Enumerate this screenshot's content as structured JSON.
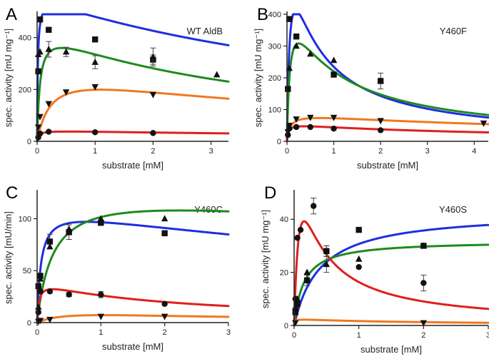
{
  "figure": {
    "x_label": "substrate [mM]",
    "marker_color": "#111111"
  },
  "chart_data": [
    {
      "type": "scatter",
      "panel_letter": "A",
      "title": "WT AldB",
      "xlabel": "substrate [mM]",
      "ylabel": "spec. activity [mU mg⁻¹]",
      "xlim": [
        0,
        3.3
      ],
      "ylim": [
        0,
        490
      ],
      "x_ticks": [
        0,
        1,
        2,
        3
      ],
      "y_ticks": [
        0,
        200,
        400
      ],
      "series": [
        {
          "name": "blue",
          "color": "#1f2de0",
          "marker": "square",
          "points": [
            [
              0.02,
              270
            ],
            [
              0.05,
              470
            ],
            [
              0.2,
              430
            ],
            [
              1.0,
              393
            ],
            [
              2.0,
              315
            ]
          ],
          "errors": [
            0,
            0,
            0,
            0,
            18
          ],
          "curve": {
            "Vmax": 560,
            "Km": 0.012,
            "Ki": 6.5
          }
        },
        {
          "name": "green",
          "color": "#1e8a1e",
          "marker": "triangle",
          "points": [
            [
              0.02,
              335
            ],
            [
              0.05,
              345
            ],
            [
              0.2,
              355
            ],
            [
              0.5,
              345
            ],
            [
              1.0,
              305
            ],
            [
              2.0,
              325
            ],
            [
              3.1,
              257
            ]
          ],
          "errors": [
            0,
            0,
            30,
            18,
            25,
            35,
            0
          ],
          "curve": {
            "Vmax": 445,
            "Km": 0.05,
            "Ki": 3.6
          }
        },
        {
          "name": "orange",
          "color": "#f07820",
          "marker": "triangle-down",
          "points": [
            [
              0.02,
              55
            ],
            [
              0.05,
              95
            ],
            [
              0.2,
              145
            ],
            [
              0.5,
              190
            ],
            [
              1.0,
              210
            ],
            [
              2.0,
              180
            ]
          ],
          "errors": [
            0,
            0,
            0,
            0,
            0,
            0
          ],
          "curve": {
            "Vmax": 290,
            "Km": 0.25,
            "Ki": 4.8
          }
        },
        {
          "name": "red",
          "color": "#e01e1e",
          "marker": "circle",
          "points": [
            [
              0.02,
              15
            ],
            [
              0.05,
              30
            ],
            [
              0.2,
              37
            ],
            [
              1.0,
              35
            ],
            [
              2.0,
              32
            ]
          ],
          "errors": [
            0,
            0,
            0,
            0,
            0
          ],
          "curve": {
            "Vmax": 42,
            "Km": 0.03,
            "Ki": 9
          }
        }
      ]
    },
    {
      "type": "scatter",
      "panel_letter": "B",
      "title": "Y460F",
      "xlabel": "substrate [mM]",
      "ylabel": "spec. activity [mU mg⁻¹]",
      "xlim": [
        0,
        4.3
      ],
      "ylim": [
        0,
        400
      ],
      "x_ticks": [
        0,
        1,
        2,
        3,
        4
      ],
      "y_ticks": [
        0,
        100,
        200,
        300,
        400
      ],
      "series": [
        {
          "name": "blue",
          "color": "#1f2de0",
          "marker": "square",
          "points": [
            [
              0.02,
              165
            ],
            [
              0.05,
              385
            ],
            [
              0.2,
              330
            ],
            [
              1.0,
              210
            ],
            [
              2.0,
              190
            ]
          ],
          "errors": [
            0,
            0,
            0,
            0,
            25
          ],
          "curve": {
            "Vmax": 720,
            "Km": 0.07,
            "Ki": 0.5
          }
        },
        {
          "name": "green",
          "color": "#1e8a1e",
          "marker": "triangle",
          "points": [
            [
              0.05,
              230
            ],
            [
              0.2,
              300
            ],
            [
              0.5,
              275
            ],
            [
              1.0,
              255
            ],
            [
              2.0,
              190
            ]
          ],
          "errors": [
            0,
            0,
            0,
            0,
            0
          ],
          "curve": {
            "Vmax": 480,
            "Km": 0.07,
            "Ki": 0.9
          }
        },
        {
          "name": "orange",
          "color": "#f07820",
          "marker": "triangle-down",
          "points": [
            [
              0.02,
              30
            ],
            [
              0.05,
              50
            ],
            [
              0.2,
              70
            ],
            [
              0.5,
              75
            ],
            [
              1.0,
              75
            ],
            [
              2.0,
              65
            ],
            [
              4.2,
              57
            ]
          ],
          "errors": [
            0,
            0,
            0,
            0,
            0,
            0,
            0
          ],
          "curve": {
            "Vmax": 88,
            "Km": 0.07,
            "Ki": 7
          }
        },
        {
          "name": "red",
          "color": "#e01e1e",
          "marker": "circle",
          "points": [
            [
              0.02,
              20
            ],
            [
              0.05,
              40
            ],
            [
              0.2,
              45
            ],
            [
              0.5,
              45
            ],
            [
              1.0,
              40
            ],
            [
              2.0,
              35
            ]
          ],
          "errors": [
            0,
            0,
            0,
            0,
            0,
            0
          ],
          "curve": {
            "Vmax": 55,
            "Km": 0.03,
            "Ki": 4.5
          }
        }
      ]
    },
    {
      "type": "scatter",
      "panel_letter": "C",
      "title": "Y460C",
      "xlabel": "substrate [mM]",
      "ylabel": "spec. activity [mU/min]",
      "xlim": [
        0,
        3
      ],
      "ylim": [
        0,
        125
      ],
      "x_ticks": [
        0,
        1,
        2,
        3
      ],
      "y_ticks": [
        0,
        50,
        100
      ],
      "series": [
        {
          "name": "blue",
          "color": "#1f2de0",
          "marker": "square",
          "points": [
            [
              0.02,
              35
            ],
            [
              0.05,
              45
            ],
            [
              0.2,
              78
            ],
            [
              0.5,
              87
            ],
            [
              1.0,
              96
            ],
            [
              2.0,
              86
            ]
          ],
          "errors": [
            0,
            0,
            7,
            7,
            0,
            0
          ],
          "curve": {
            "Vmax": 112,
            "Km": 0.06,
            "Ki": 10
          }
        },
        {
          "name": "green",
          "color": "#1e8a1e",
          "marker": "triangle",
          "points": [
            [
              0.02,
              15
            ],
            [
              0.05,
              42
            ],
            [
              0.2,
              73
            ],
            [
              0.5,
              90
            ],
            [
              1.0,
              100
            ],
            [
              2.0,
              100
            ]
          ],
          "errors": [
            0,
            0,
            0,
            0,
            0,
            0
          ],
          "curve": {
            "Vmax": 132,
            "Km": 0.25,
            "Ki": 20
          }
        },
        {
          "name": "orange",
          "color": "#f07820",
          "marker": "triangle-down",
          "points": [
            [
              0.02,
              1
            ],
            [
              0.05,
              2
            ],
            [
              0.2,
              3
            ],
            [
              1.0,
              6
            ],
            [
              2.0,
              6
            ]
          ],
          "errors": [
            0,
            0,
            0,
            0,
            0
          ],
          "curve": {
            "Vmax": 14,
            "Km": 0.5,
            "Ki": 2.2
          }
        },
        {
          "name": "red",
          "color": "#e01e1e",
          "marker": "circle",
          "points": [
            [
              0.02,
              10
            ],
            [
              0.05,
              30
            ],
            [
              0.2,
              30
            ],
            [
              0.5,
              27
            ],
            [
              1.0,
              27
            ],
            [
              2.0,
              18
            ]
          ],
          "errors": [
            0,
            0,
            0,
            2,
            3,
            0
          ],
          "curve": {
            "Vmax": 40,
            "Km": 0.03,
            "Ki": 2
          }
        }
      ]
    },
    {
      "type": "scatter",
      "panel_letter": "D",
      "title": "Y460S",
      "xlabel": "substrate [mM]",
      "ylabel": "spec. activity [mU mg⁻¹]",
      "xlim": [
        0,
        3
      ],
      "ylim": [
        0,
        50
      ],
      "x_ticks": [
        0,
        1,
        2,
        3
      ],
      "y_ticks": [
        0,
        20,
        40
      ],
      "series": [
        {
          "name": "blue",
          "color": "#1f2de0",
          "marker": "square",
          "points": [
            [
              0.02,
              5
            ],
            [
              0.05,
              8
            ],
            [
              0.2,
              17
            ],
            [
              0.5,
              28
            ],
            [
              1.0,
              36
            ],
            [
              2.0,
              30
            ]
          ],
          "errors": [
            0,
            0,
            2,
            2,
            0,
            0
          ],
          "curve": {
            "Vmax": 43,
            "Km": 0.4,
            "Ki": 1000
          }
        },
        {
          "name": "green",
          "color": "#1e8a1e",
          "marker": "triangle",
          "points": [
            [
              0.02,
              7
            ],
            [
              0.05,
              10
            ],
            [
              0.2,
              20
            ],
            [
              0.5,
              23
            ],
            [
              1.0,
              25
            ],
            [
              2.0,
              30
            ]
          ],
          "errors": [
            0,
            0,
            0,
            3,
            0,
            0
          ],
          "curve": {
            "Vmax": 32,
            "Km": 0.15,
            "Ki": 1000
          }
        },
        {
          "name": "orange",
          "color": "#f07820",
          "marker": "triangle-down",
          "points": [
            [
              0.02,
              1
            ],
            [
              2.0,
              1
            ]
          ],
          "errors": [
            0,
            0
          ],
          "curve": {
            "Vmax": 2.5,
            "Km": 0.01,
            "Ki": 2
          }
        },
        {
          "name": "red",
          "color": "#e01e1e",
          "marker": "circle",
          "points": [
            [
              0.02,
              10
            ],
            [
              0.05,
              33
            ],
            [
              0.1,
              36
            ],
            [
              0.3,
              45
            ],
            [
              0.5,
              28
            ],
            [
              1.0,
              22
            ],
            [
              2.0,
              16
            ]
          ],
          "errors": [
            0,
            0,
            0,
            3,
            2,
            0,
            3
          ],
          "curve": {
            "Vmax": 100,
            "Km": 0.12,
            "Ki": 0.2
          }
        }
      ]
    }
  ]
}
